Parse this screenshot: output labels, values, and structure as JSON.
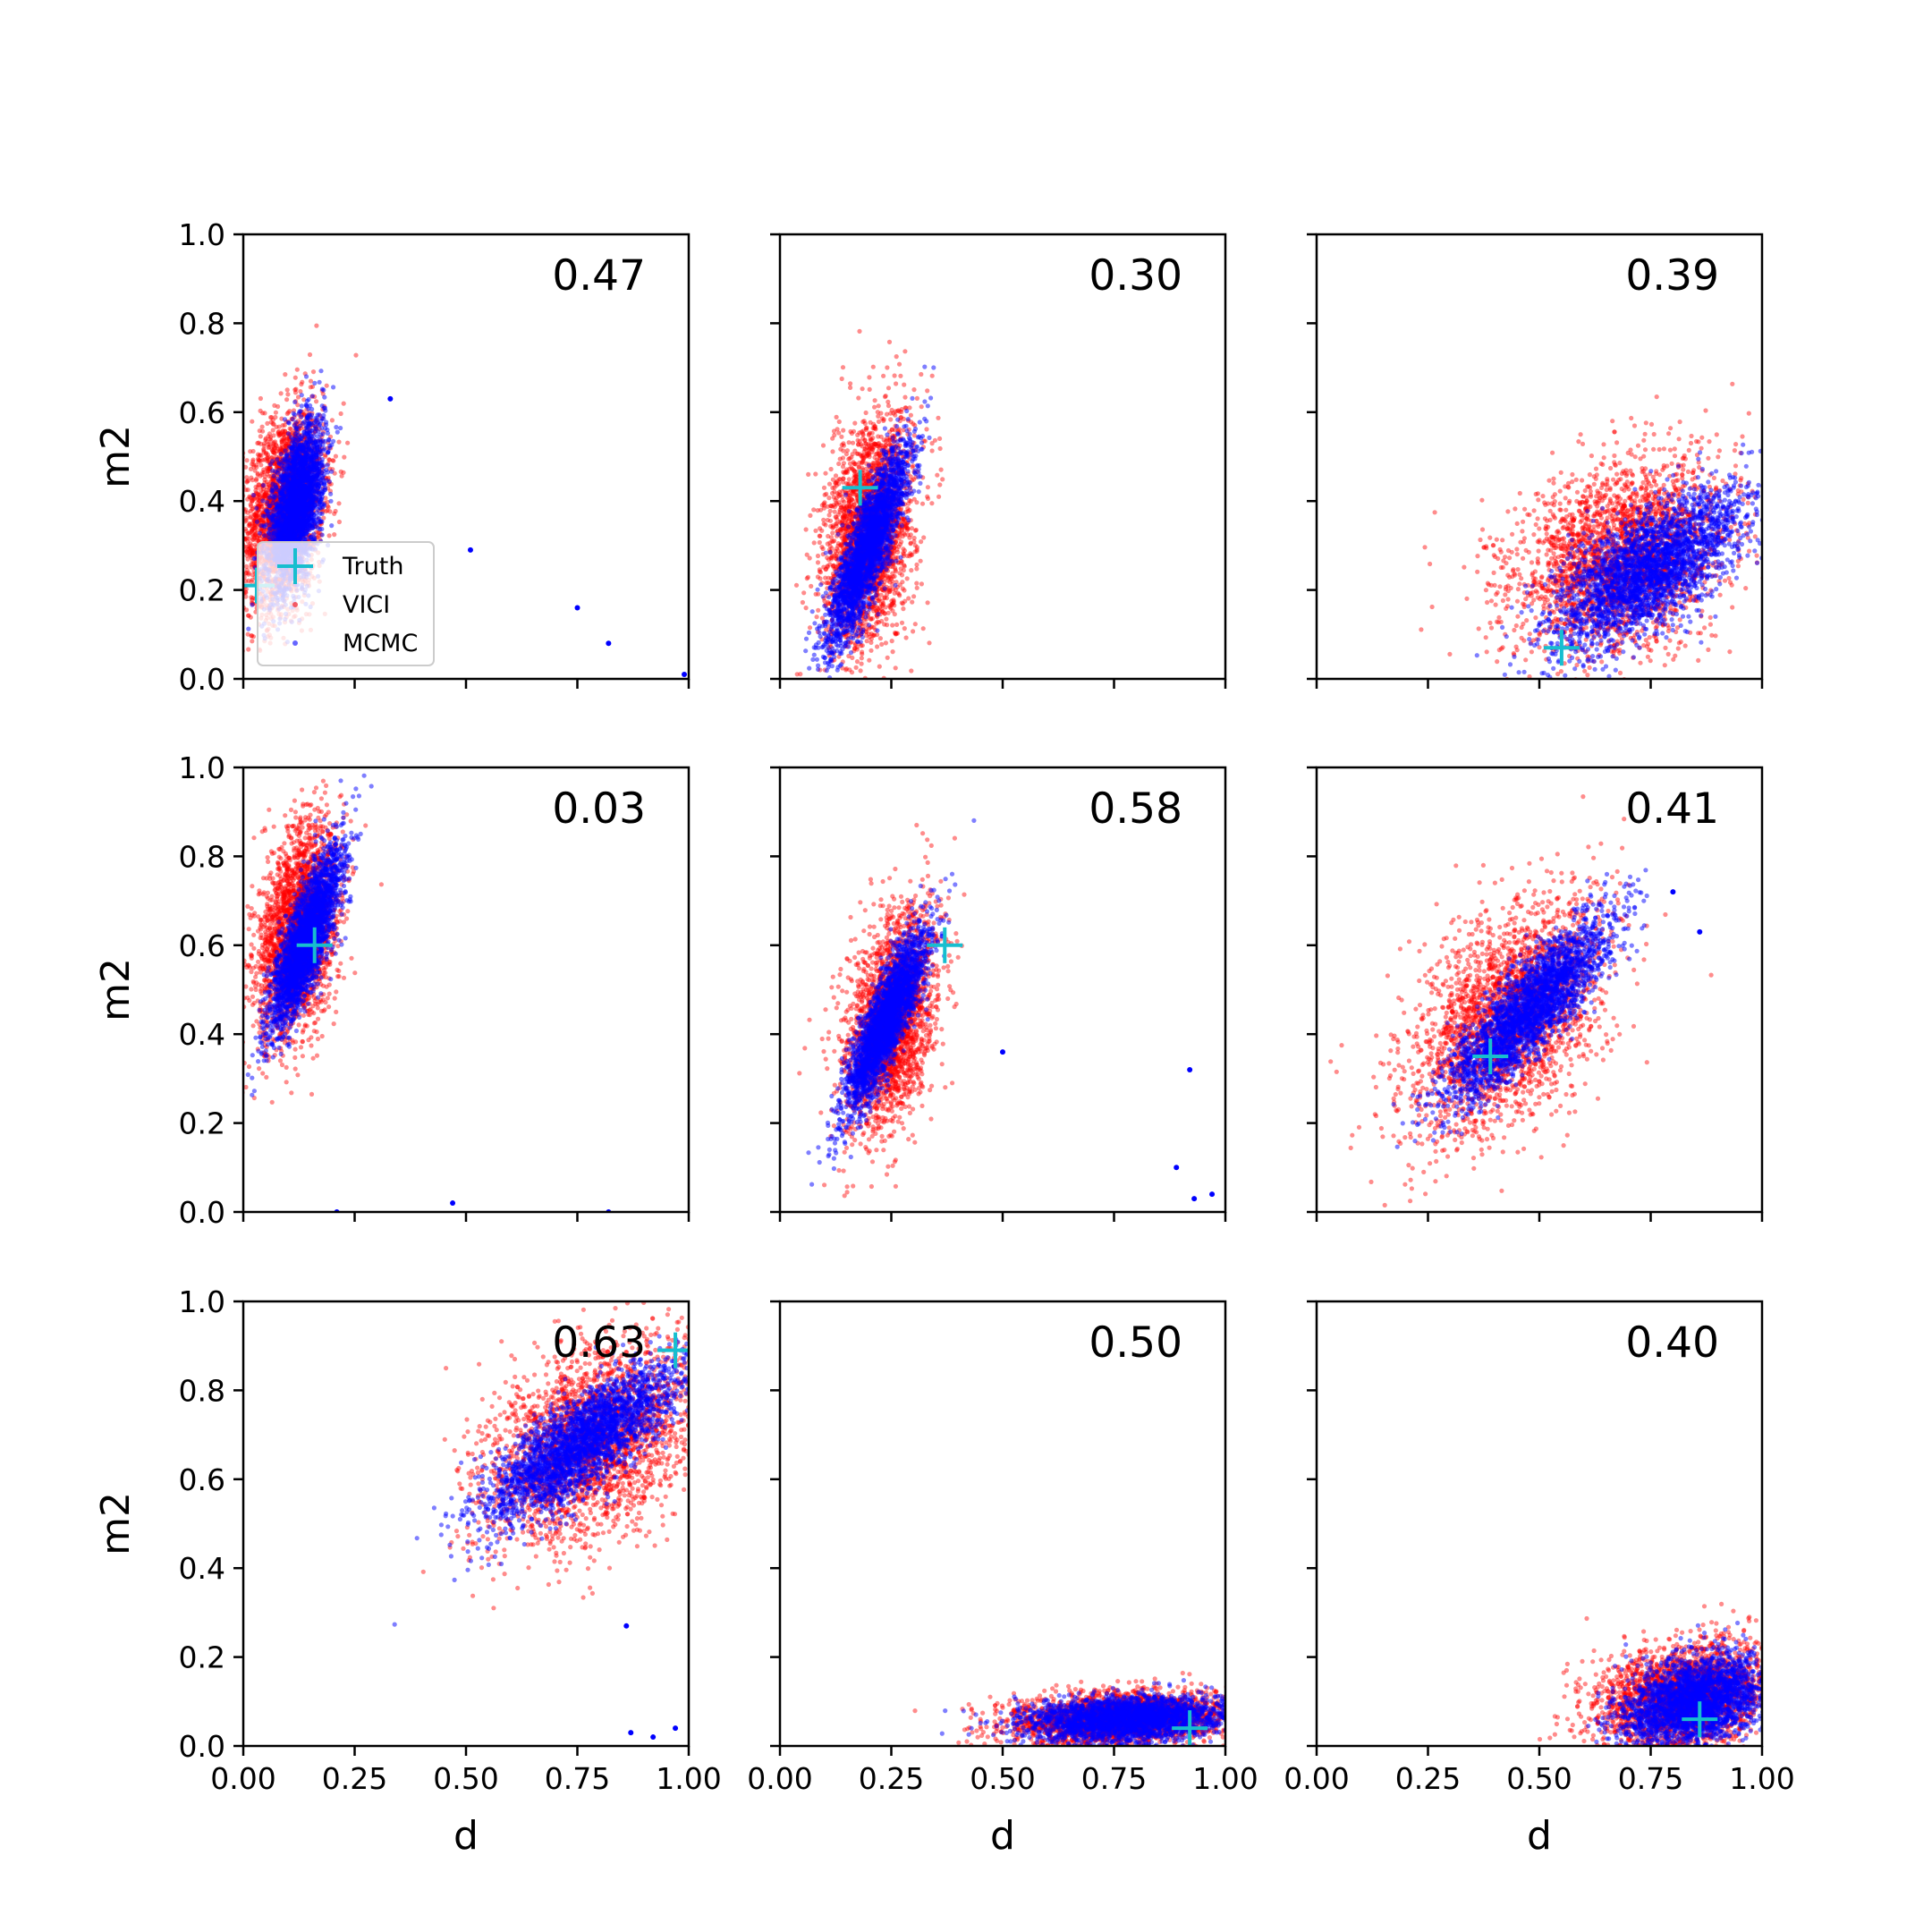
{
  "chart_data": {
    "type": "scatter",
    "layout": "3x3 grid",
    "xlabel": "d",
    "ylabel": "m2",
    "xlim": [
      0.0,
      1.0
    ],
    "ylim": [
      0.0,
      1.0
    ],
    "x_tick_labels": [
      "0.00",
      "0.25",
      "0.50",
      "0.75",
      "1.00"
    ],
    "y_tick_labels": [
      "0.0",
      "0.2",
      "0.4",
      "0.6",
      "0.8",
      "1.0"
    ],
    "legend": {
      "placement": "lower-left of first panel",
      "entries": [
        {
          "label": "Truth",
          "marker": "plus",
          "color": "#17becf"
        },
        {
          "label": "VICI",
          "marker": "dot",
          "color": "#ff0000"
        },
        {
          "label": "MCMC",
          "marker": "dot",
          "color": "#0000ff"
        }
      ]
    },
    "colors": {
      "truth": "#17becf",
      "vici": "#ff0000",
      "mcmc": "#0000ff"
    },
    "panels": [
      {
        "score": "0.47",
        "truth": [
          0.03,
          0.21
        ],
        "vici": {
          "center": [
            0.09,
            0.38
          ],
          "sd": [
            0.045,
            0.11
          ],
          "rho": 0.3
        },
        "mcmc": {
          "center": [
            0.12,
            0.39
          ],
          "sd": [
            0.03,
            0.09
          ],
          "rho": 0.5
        },
        "outliers": [
          [
            0.33,
            0.63
          ],
          [
            0.51,
            0.29
          ],
          [
            0.75,
            0.16
          ],
          [
            0.82,
            0.08
          ],
          [
            0.99,
            0.01
          ]
        ]
      },
      {
        "score": "0.30",
        "truth": [
          0.18,
          0.43
        ],
        "vici": {
          "center": [
            0.2,
            0.33
          ],
          "sd": [
            0.05,
            0.13
          ],
          "rho": 0.3
        },
        "mcmc": {
          "center": [
            0.2,
            0.3
          ],
          "sd": [
            0.045,
            0.11
          ],
          "rho": 0.85
        },
        "outliers": []
      },
      {
        "score": "0.39",
        "truth": [
          0.55,
          0.07
        ],
        "vici": {
          "center": [
            0.68,
            0.27
          ],
          "sd": [
            0.12,
            0.11
          ],
          "rho": 0.3
        },
        "mcmc": {
          "center": [
            0.75,
            0.25
          ],
          "sd": [
            0.11,
            0.09
          ],
          "rho": 0.7
        },
        "outliers": []
      },
      {
        "score": "0.03",
        "truth": [
          0.16,
          0.6
        ],
        "vici": {
          "center": [
            0.12,
            0.63
          ],
          "sd": [
            0.045,
            0.12
          ],
          "rho": 0.35
        },
        "mcmc": {
          "center": [
            0.14,
            0.61
          ],
          "sd": [
            0.04,
            0.1
          ],
          "rho": 0.8
        },
        "outliers": [
          [
            0.21,
            0.0
          ],
          [
            0.47,
            0.02
          ],
          [
            0.82,
            0.0
          ]
        ]
      },
      {
        "score": "0.58",
        "truth": [
          0.37,
          0.6
        ],
        "vici": {
          "center": [
            0.25,
            0.43
          ],
          "sd": [
            0.05,
            0.12
          ],
          "rho": 0.4
        },
        "mcmc": {
          "center": [
            0.24,
            0.43
          ],
          "sd": [
            0.045,
            0.1
          ],
          "rho": 0.85
        },
        "outliers": [
          [
            0.5,
            0.36
          ],
          [
            0.92,
            0.32
          ],
          [
            0.89,
            0.1
          ],
          [
            0.93,
            0.03
          ],
          [
            0.97,
            0.04
          ]
        ]
      },
      {
        "score": "0.41",
        "truth": [
          0.39,
          0.35
        ],
        "vici": {
          "center": [
            0.43,
            0.44
          ],
          "sd": [
            0.11,
            0.13
          ],
          "rho": 0.45
        },
        "mcmc": {
          "center": [
            0.48,
            0.46
          ],
          "sd": [
            0.09,
            0.1
          ],
          "rho": 0.85
        },
        "outliers": [
          [
            0.8,
            0.72
          ],
          [
            0.86,
            0.63
          ]
        ]
      },
      {
        "score": "0.63",
        "truth": [
          0.97,
          0.89
        ],
        "vici": {
          "center": [
            0.78,
            0.68
          ],
          "sd": [
            0.12,
            0.11
          ],
          "rho": 0.4
        },
        "mcmc": {
          "center": [
            0.76,
            0.68
          ],
          "sd": [
            0.11,
            0.09
          ],
          "rho": 0.8
        },
        "outliers": [
          [
            0.87,
            0.03
          ],
          [
            0.92,
            0.02
          ],
          [
            0.97,
            0.04
          ],
          [
            0.86,
            0.27
          ]
        ]
      },
      {
        "score": "0.50",
        "truth": [
          0.92,
          0.04
        ],
        "vici": {
          "center": [
            0.76,
            0.06
          ],
          "sd": [
            0.12,
            0.03
          ],
          "rho": 0.2
        },
        "mcmc": {
          "center": [
            0.78,
            0.06
          ],
          "sd": [
            0.11,
            0.025
          ],
          "rho": 0.2
        },
        "outliers": []
      },
      {
        "score": "0.40",
        "truth": [
          0.86,
          0.06
        ],
        "vici": {
          "center": [
            0.82,
            0.11
          ],
          "sd": [
            0.1,
            0.06
          ],
          "rho": 0.3
        },
        "mcmc": {
          "center": [
            0.85,
            0.1
          ],
          "sd": [
            0.08,
            0.05
          ],
          "rho": 0.3
        },
        "outliers": []
      }
    ]
  }
}
